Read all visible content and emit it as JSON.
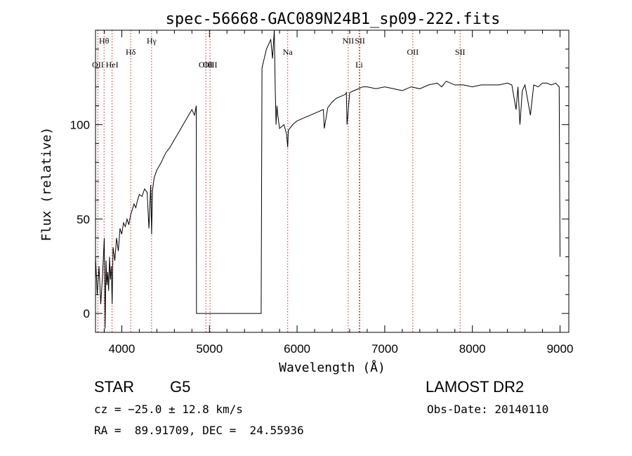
{
  "chart_data": {
    "type": "line",
    "title": "spec-56668-GAC089N24B1_sp09-222.fits",
    "xlabel": "Wavelength (Å)",
    "ylabel": "Flux (relative)",
    "xlim": [
      3700,
      9100
    ],
    "ylim": [
      -10,
      150
    ],
    "x_ticks": [
      4000,
      5000,
      6000,
      7000,
      8000,
      9000
    ],
    "y_ticks": [
      0,
      50,
      100
    ],
    "x_tick_labels": [
      "4000",
      "5000",
      "6000",
      "7000",
      "8000",
      "9000"
    ],
    "y_tick_labels": [
      "0",
      "50",
      "100"
    ],
    "line_color": "#000000",
    "marker_color": "#cc2222",
    "series": [
      {
        "x": [
          3700,
          3720,
          3740,
          3760,
          3780,
          3800,
          3810,
          3820,
          3830,
          3840,
          3850,
          3860,
          3870,
          3880,
          3890,
          3900,
          3920,
          3940,
          3960,
          3980,
          4000,
          4020,
          4040,
          4060,
          4080,
          4100,
          4120,
          4140,
          4160,
          4180,
          4200,
          4230,
          4260,
          4290,
          4310,
          4330,
          4340,
          4350,
          4370,
          4400,
          4450,
          4500,
          4550,
          4600,
          4650,
          4700,
          4750,
          4800,
          4830,
          4850,
          4852,
          5000,
          5200,
          5400,
          5590,
          5600,
          5650,
          5700,
          5720,
          5740,
          5750,
          5760,
          5770,
          5780,
          5800,
          5850,
          5880,
          5893,
          5900,
          5950,
          6000,
          6050,
          6100,
          6150,
          6200,
          6250,
          6300,
          6310,
          6350,
          6400,
          6450,
          6500,
          6550,
          6562,
          6570,
          6600,
          6650,
          6700,
          6750,
          6800,
          6900,
          7000,
          7100,
          7200,
          7300,
          7400,
          7500,
          7600,
          7650,
          7700,
          7800,
          7900,
          8000,
          8100,
          8200,
          8300,
          8400,
          8450,
          8498,
          8520,
          8542,
          8570,
          8600,
          8662,
          8700,
          8750,
          8800,
          8850,
          8900,
          8950,
          8990,
          9000
        ],
        "values": [
          30,
          10,
          25,
          5,
          20,
          40,
          -8,
          28,
          15,
          22,
          12,
          30,
          18,
          25,
          5,
          35,
          28,
          40,
          33,
          45,
          42,
          48,
          46,
          50,
          47,
          52,
          55,
          58,
          56,
          60,
          63,
          62,
          66,
          64,
          45,
          68,
          42,
          65,
          72,
          76,
          80,
          85,
          88,
          92,
          96,
          100,
          104,
          108,
          105,
          110,
          0,
          0,
          0,
          0,
          0,
          130,
          140,
          145,
          135,
          150,
          120,
          100,
          110,
          105,
          98,
          100,
          95,
          88,
          97,
          100,
          102,
          103,
          104,
          105,
          106,
          107,
          108,
          98,
          109,
          112,
          114,
          115,
          116,
          117,
          100,
          117,
          118,
          119,
          120,
          120,
          119,
          120,
          119,
          118,
          120,
          119,
          121,
          122,
          120,
          123,
          121,
          121,
          120,
          121,
          121,
          121,
          122,
          121,
          108,
          120,
          100,
          118,
          121,
          105,
          121,
          120,
          122,
          122,
          121,
          122,
          120,
          30
        ]
      }
    ],
    "lines": [
      {
        "name": "Hθ",
        "x": 3798,
        "row": 1
      },
      {
        "name": "OII",
        "x": 3727,
        "row": 3
      },
      {
        "name": "HeI",
        "x": 3889,
        "row": 3
      },
      {
        "name": "Hδ",
        "x": 4102,
        "row": 2
      },
      {
        "name": "Hγ",
        "x": 4340,
        "row": 1
      },
      {
        "name": "OIII",
        "x": 4959,
        "row": 3
      },
      {
        "name": "OIII",
        "x": 5007,
        "row": 3
      },
      {
        "name": "Na",
        "x": 5893,
        "row": 2
      },
      {
        "name": "NII",
        "x": 6583,
        "row": 1
      },
      {
        "name": "SII",
        "x": 6717,
        "row": 1
      },
      {
        "name": "Li",
        "x": 6708,
        "row": 3
      },
      {
        "name": "OII",
        "x": 7320,
        "row": 2
      },
      {
        "name": "SII",
        "x": 7860,
        "row": 2
      }
    ]
  },
  "info": {
    "class_label": "STAR",
    "subclass": "G5",
    "cz": "cz = −25.0 ± 12.8 km/s",
    "coords": "RA =  89.91709, DEC =  24.55936",
    "survey": "LAMOST DR2",
    "obs_date": "Obs-Date: 20140110"
  }
}
